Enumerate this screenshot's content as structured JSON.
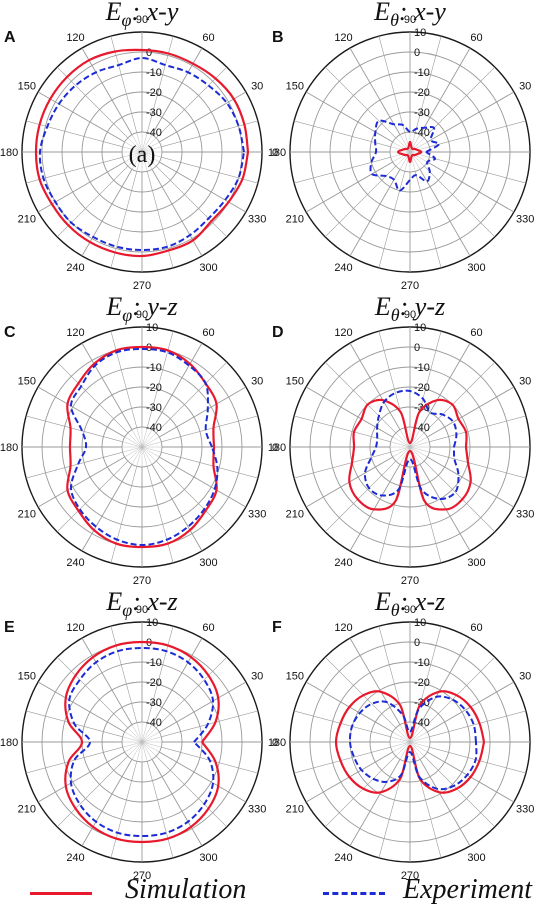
{
  "colors": {
    "simulation": "#e8192c",
    "experiment": "#1b2bd6",
    "grid": "#9a9a9a",
    "axis": "#1a1a1a"
  },
  "legend": {
    "simulation_label": "Simulation",
    "experiment_label": "Experiment"
  },
  "chart_data": [
    {
      "type": "polar-line",
      "panel_letter": "A",
      "title": "Eφ: x-y",
      "title_quantity": "E",
      "title_subscript": "φ",
      "title_plane": ": x-y",
      "radial_ticks": [
        "-40",
        "-30",
        "-20",
        "-10",
        "0"
      ],
      "radial_range_db": [
        -50,
        10
      ],
      "angle_ticks": [
        "0",
        "30",
        "60",
        "90",
        "120",
        "150",
        "180",
        "210",
        "240",
        "270",
        "300",
        "330"
      ],
      "annotation": "(a)",
      "series": [
        {
          "name": "Simulation",
          "theta_deg": [
            0,
            15,
            30,
            45,
            60,
            75,
            90,
            105,
            120,
            135,
            150,
            165,
            180,
            195,
            210,
            225,
            240,
            255,
            270,
            285,
            300,
            315,
            330,
            345,
            360
          ],
          "r_db": [
            3,
            3,
            3,
            2,
            1,
            1,
            1,
            2,
            3,
            3,
            3,
            3,
            3,
            3,
            2,
            2,
            2,
            2,
            2,
            1,
            1,
            -1,
            0,
            2,
            3
          ]
        },
        {
          "name": "Experiment",
          "theta_deg": [
            0,
            15,
            30,
            45,
            60,
            75,
            90,
            105,
            120,
            135,
            150,
            165,
            180,
            195,
            210,
            225,
            240,
            255,
            270,
            285,
            300,
            315,
            330,
            345,
            360
          ],
          "r_db": [
            1,
            0,
            -1,
            -3,
            -4,
            -5,
            -3,
            -5,
            -4,
            -3,
            -2,
            -1,
            1,
            1,
            0,
            0,
            -1,
            -1,
            -1,
            -1,
            -2,
            -3,
            -2,
            0,
            1
          ]
        }
      ]
    },
    {
      "type": "polar-line",
      "panel_letter": "B",
      "title": "Eθ: x-y",
      "title_quantity": "E",
      "title_subscript": "θ",
      "title_plane": ": x-y",
      "radial_ticks": [
        "-40",
        "-30",
        "-20",
        "-10",
        "0",
        "10"
      ],
      "radial_range_db": [
        -50,
        10
      ],
      "angle_ticks": [
        "0",
        "30",
        "60",
        "90",
        "120",
        "150",
        "180",
        "210",
        "240",
        "270",
        "300",
        "330"
      ],
      "series": [
        {
          "name": "Simulation",
          "theta_deg": [
            0,
            30,
            60,
            90,
            120,
            150,
            180,
            210,
            240,
            270,
            300,
            330,
            360
          ],
          "r_db": [
            -44,
            -47,
            -48,
            -45,
            -48,
            -47,
            -44,
            -47,
            -48,
            -45,
            -48,
            -47,
            -44
          ]
        },
        {
          "name": "Experiment",
          "theta_deg": [
            0,
            15,
            30,
            45,
            60,
            75,
            90,
            105,
            120,
            135,
            150,
            165,
            180,
            195,
            210,
            225,
            240,
            255,
            270,
            285,
            300,
            315,
            330,
            345,
            360
          ],
          "r_db": [
            -42,
            -35,
            -38,
            -33,
            -36,
            -38,
            -40,
            -36,
            -34,
            -28,
            -30,
            -32,
            -33,
            -30,
            -28,
            -33,
            -34,
            -30,
            -36,
            -38,
            -33,
            -36,
            -40,
            -37,
            -42
          ]
        }
      ]
    },
    {
      "type": "polar-line",
      "panel_letter": "C",
      "title": "Eφ: y-z",
      "title_quantity": "E",
      "title_subscript": "φ",
      "title_plane": ": y-z",
      "radial_ticks": [
        "-40",
        "-30",
        "-20",
        "-10",
        "0",
        "10"
      ],
      "radial_range_db": [
        -50,
        10
      ],
      "angle_ticks": [
        "0",
        "30",
        "60",
        "90",
        "120",
        "150",
        "180",
        "210",
        "240",
        "270",
        "300",
        "330"
      ],
      "series": [
        {
          "name": "Simulation",
          "theta_deg": [
            0,
            15,
            30,
            45,
            60,
            75,
            90,
            105,
            120,
            135,
            150,
            165,
            180,
            195,
            210,
            225,
            240,
            255,
            270,
            285,
            300,
            315,
            330,
            345,
            360
          ],
          "r_db": [
            -14,
            -13,
            -7,
            -5,
            -2,
            0,
            0,
            0,
            -2,
            -5,
            -7,
            -13,
            -14,
            -13,
            -7,
            -5,
            -2,
            0,
            0,
            0,
            -2,
            -5,
            -7,
            -13,
            -14
          ]
        },
        {
          "name": "Experiment",
          "theta_deg": [
            0,
            15,
            30,
            45,
            60,
            75,
            90,
            105,
            120,
            135,
            150,
            165,
            180,
            195,
            210,
            225,
            240,
            255,
            270,
            285,
            300,
            315,
            330,
            345,
            360
          ],
          "r_db": [
            -15,
            -17,
            -12,
            -5,
            -3,
            -1,
            -1,
            -1,
            -3,
            -7,
            -9,
            -19,
            -22,
            -17,
            -9,
            -6,
            -4,
            -2,
            -1,
            -2,
            -4,
            -6,
            -8,
            -11,
            -15
          ]
        }
      ]
    },
    {
      "type": "polar-line",
      "panel_letter": "D",
      "title": "Eθ: y-z",
      "title_quantity": "E",
      "title_subscript": "θ",
      "title_plane": ": y-z",
      "radial_ticks": [
        "-40",
        "-30",
        "-20",
        "-10",
        "0",
        "10"
      ],
      "radial_range_db": [
        -50,
        10
      ],
      "angle_ticks": [
        "0",
        "30",
        "60",
        "90",
        "120",
        "150",
        "180",
        "210",
        "240",
        "270",
        "300",
        "330"
      ],
      "series": [
        {
          "name": "Simulation",
          "theta_deg": [
            0,
            15,
            30,
            45,
            60,
            75,
            90,
            105,
            120,
            135,
            150,
            165,
            180,
            195,
            210,
            225,
            240,
            255,
            270,
            285,
            300,
            315,
            330,
            345,
            360
          ],
          "r_db": [
            -22,
            -21,
            -22,
            -20,
            -23,
            -32,
            -48,
            -32,
            -23,
            -20,
            -22,
            -21,
            -22,
            -20,
            -15,
            -13,
            -14,
            -22,
            -48,
            -22,
            -14,
            -13,
            -15,
            -20,
            -22
          ]
        },
        {
          "name": "Experiment",
          "theta_deg": [
            0,
            15,
            30,
            45,
            60,
            75,
            90,
            105,
            120,
            135,
            150,
            165,
            180,
            195,
            210,
            225,
            240,
            255,
            270,
            285,
            300,
            315,
            330,
            345,
            360
          ],
          "r_db": [
            -28,
            -26,
            -25,
            -27,
            -30,
            -25,
            -22,
            -22,
            -24,
            -28,
            -31,
            -33,
            -33,
            -30,
            -24,
            -21,
            -22,
            -28,
            -44,
            -28,
            -20,
            -18,
            -22,
            -27,
            -28
          ]
        }
      ]
    },
    {
      "type": "polar-line",
      "panel_letter": "E",
      "title": "Eφ: x-z",
      "title_quantity": "E",
      "title_subscript": "φ",
      "title_plane": ": x-z",
      "radial_ticks": [
        "-40",
        "-30",
        "-20",
        "-10",
        "0",
        "10"
      ],
      "radial_range_db": [
        -50,
        10
      ],
      "angle_ticks": [
        "0",
        "30",
        "60",
        "90",
        "120",
        "150",
        "180",
        "210",
        "240",
        "270",
        "300",
        "330"
      ],
      "series": [
        {
          "name": "Simulation",
          "theta_deg": [
            0,
            15,
            30,
            45,
            60,
            75,
            90,
            105,
            120,
            135,
            150,
            165,
            180,
            195,
            210,
            225,
            240,
            255,
            270,
            285,
            300,
            315,
            330,
            345,
            360
          ],
          "r_db": [
            -20,
            -12,
            -6,
            -3,
            -1,
            0,
            0,
            0,
            -1,
            -3,
            -6,
            -12,
            -20,
            -12,
            -6,
            -3,
            -1,
            0,
            0,
            0,
            -1,
            -3,
            -6,
            -12,
            -20
          ]
        },
        {
          "name": "Experiment",
          "theta_deg": [
            0,
            15,
            30,
            45,
            60,
            75,
            90,
            105,
            120,
            135,
            150,
            165,
            180,
            195,
            210,
            225,
            240,
            255,
            270,
            285,
            300,
            315,
            330,
            345,
            360
          ],
          "r_db": [
            -24,
            -16,
            -9,
            -6,
            -4,
            -3,
            -3,
            -3,
            -4,
            -6,
            -8,
            -15,
            -24,
            -15,
            -9,
            -6,
            -4,
            -3,
            -3,
            -3,
            -4,
            -6,
            -9,
            -15,
            -24
          ]
        }
      ]
    },
    {
      "type": "polar-line",
      "panel_letter": "F",
      "title": "Eθ: x-z",
      "title_quantity": "E",
      "title_subscript": "θ",
      "title_plane": ": x-z",
      "radial_ticks": [
        "-40",
        "-30",
        "-20",
        "-10",
        "0",
        "10"
      ],
      "radial_range_db": [
        -50,
        10
      ],
      "angle_ticks": [
        "0",
        "30",
        "60",
        "90",
        "120",
        "150",
        "180",
        "210",
        "240",
        "270",
        "300",
        "330"
      ],
      "series": [
        {
          "name": "Simulation",
          "theta_deg": [
            0,
            15,
            30,
            45,
            60,
            75,
            90,
            105,
            120,
            135,
            150,
            165,
            180,
            195,
            210,
            225,
            240,
            255,
            270,
            285,
            300,
            315,
            330,
            345,
            360
          ],
          "r_db": [
            -13,
            -14,
            -15,
            -17,
            -21,
            -31,
            -48,
            -31,
            -21,
            -17,
            -15,
            -14,
            -13,
            -14,
            -15,
            -17,
            -21,
            -31,
            -48,
            -31,
            -21,
            -17,
            -15,
            -14,
            -13
          ]
        },
        {
          "name": "Experiment",
          "theta_deg": [
            0,
            15,
            30,
            45,
            60,
            75,
            90,
            105,
            120,
            135,
            150,
            165,
            180,
            195,
            210,
            225,
            240,
            255,
            270,
            285,
            300,
            315,
            330,
            345,
            360
          ],
          "r_db": [
            -17,
            -17,
            -18,
            -20,
            -24,
            -33,
            -45,
            -36,
            -27,
            -23,
            -21,
            -20,
            -20,
            -21,
            -22,
            -24,
            -27,
            -33,
            -45,
            -32,
            -23,
            -19,
            -17,
            -16,
            -17
          ]
        }
      ]
    }
  ]
}
